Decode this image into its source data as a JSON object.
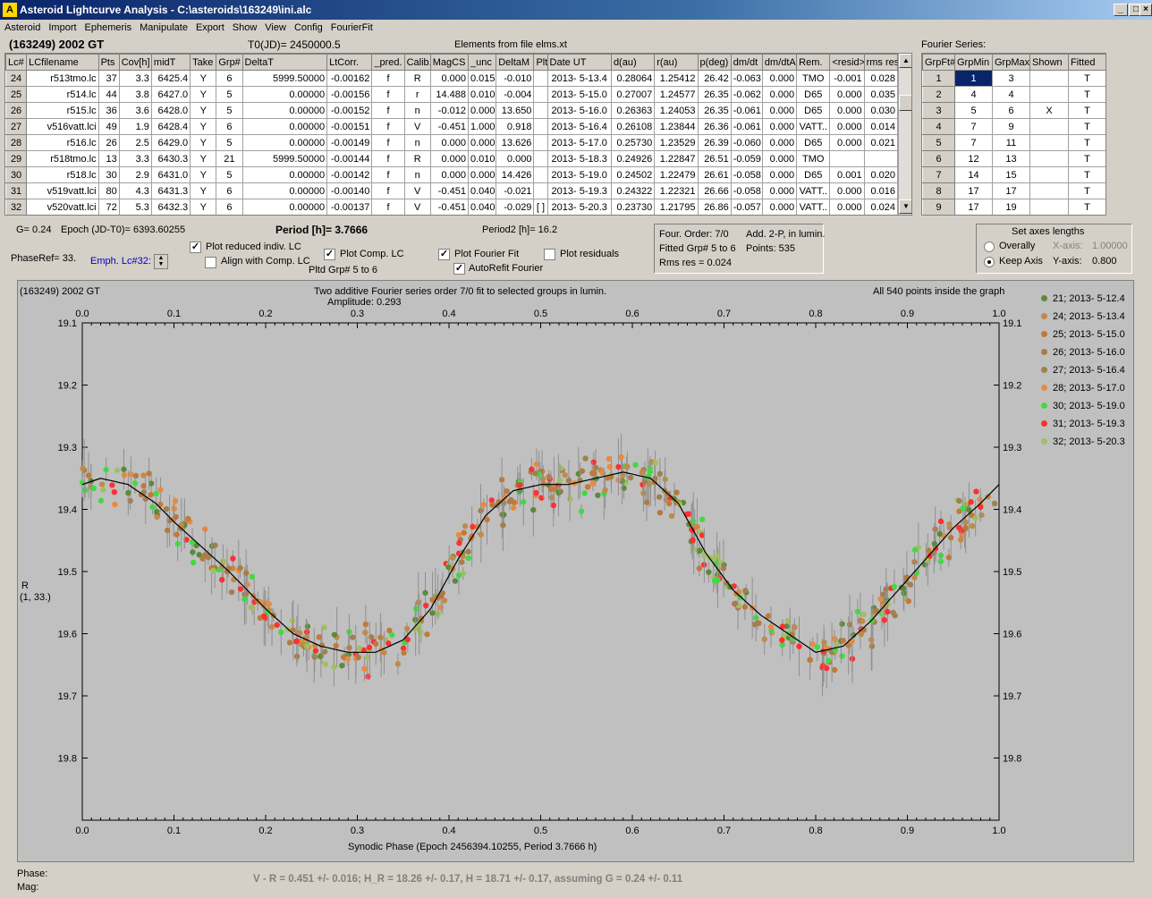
{
  "window": {
    "title": "Asteroid Lightcurve Analysis - C:\\asteroids\\163249\\ini.alc",
    "icon": "app-icon"
  },
  "menu": [
    "Asteroid",
    "Import",
    "Ephemeris",
    "Manipulate",
    "Export",
    "Show",
    "View",
    "Config",
    "FourierFit"
  ],
  "header": {
    "object": "(163249) 2002 GT",
    "t0": "T0(JD)= 2450000.5",
    "elements": "Elements from file elms.xt",
    "fourier_title": "Fourier Series:"
  },
  "lc_table": {
    "columns": [
      "Lc#",
      "LCfilename",
      "Pts",
      "Cov[h]",
      "midT",
      "Take",
      "Grp#",
      "DeltaT",
      "LtCorr.",
      "_pred.",
      "Calib.",
      "MagCS",
      "_unc",
      "DeltaM",
      "Plt",
      "Date UT",
      "d(au)",
      "r(au)",
      "p(deg)",
      "dm/dt",
      "dm/dtA",
      "Rem.",
      "<resid>",
      "rms res"
    ],
    "rows": [
      [
        "24",
        "r513tmo.lc",
        "37",
        "3.3",
        "6425.4",
        "Y",
        "6",
        "5999.50000",
        "-0.00162",
        "f",
        "R",
        "0.000",
        "0.015",
        "-0.010",
        "",
        "2013- 5-13.4",
        "0.28064",
        "1.25412",
        "26.42",
        "-0.063",
        "0.000",
        "TMO",
        "-0.001",
        "0.028"
      ],
      [
        "25",
        "r514.lc",
        "44",
        "3.8",
        "6427.0",
        "Y",
        "5",
        "0.00000",
        "-0.00156",
        "f",
        "r",
        "14.488",
        "0.010",
        "-0.004",
        "",
        "2013- 5-15.0",
        "0.27007",
        "1.24577",
        "26.35",
        "-0.062",
        "0.000",
        "D65",
        "0.000",
        "0.035"
      ],
      [
        "26",
        "r515.lc",
        "36",
        "3.6",
        "6428.0",
        "Y",
        "5",
        "0.00000",
        "-0.00152",
        "f",
        "n",
        "-0.012",
        "0.000",
        "13.650",
        "",
        "2013- 5-16.0",
        "0.26363",
        "1.24053",
        "26.35",
        "-0.061",
        "0.000",
        "D65",
        "0.000",
        "0.030"
      ],
      [
        "27",
        "v516vatt.lci",
        "49",
        "1.9",
        "6428.4",
        "Y",
        "6",
        "0.00000",
        "-0.00151",
        "f",
        "V",
        "-0.451",
        "1.000",
        "0.918",
        "",
        "2013- 5-16.4",
        "0.26108",
        "1.23844",
        "26.36",
        "-0.061",
        "0.000",
        "VATT..",
        "0.000",
        "0.014"
      ],
      [
        "28",
        "r516.lc",
        "26",
        "2.5",
        "6429.0",
        "Y",
        "5",
        "0.00000",
        "-0.00149",
        "f",
        "n",
        "0.000",
        "0.000",
        "13.626",
        "",
        "2013- 5-17.0",
        "0.25730",
        "1.23529",
        "26.39",
        "-0.060",
        "0.000",
        "D65",
        "0.000",
        "0.021"
      ],
      [
        "29",
        "r518tmo.lc",
        "13",
        "3.3",
        "6430.3",
        "Y",
        "21",
        "5999.50000",
        "-0.00144",
        "f",
        "R",
        "0.000",
        "0.010",
        "0.000",
        "",
        "2013- 5-18.3",
        "0.24926",
        "1.22847",
        "26.51",
        "-0.059",
        "0.000",
        "TMO",
        "",
        ""
      ],
      [
        "30",
        "r518.lc",
        "30",
        "2.9",
        "6431.0",
        "Y",
        "5",
        "0.00000",
        "-0.00142",
        "f",
        "n",
        "0.000",
        "0.000",
        "14.426",
        "",
        "2013- 5-19.0",
        "0.24502",
        "1.22479",
        "26.61",
        "-0.058",
        "0.000",
        "D65",
        "0.001",
        "0.020"
      ],
      [
        "31",
        "v519vatt.lci",
        "80",
        "4.3",
        "6431.3",
        "Y",
        "6",
        "0.00000",
        "-0.00140",
        "f",
        "V",
        "-0.451",
        "0.040",
        "-0.021",
        "",
        "2013- 5-19.3",
        "0.24322",
        "1.22321",
        "26.66",
        "-0.058",
        "0.000",
        "VATT..",
        "0.000",
        "0.016"
      ],
      [
        "32",
        "v520vatt.lci",
        "72",
        "5.3",
        "6432.3",
        "Y",
        "6",
        "0.00000",
        "-0.00137",
        "f",
        "V",
        "-0.451",
        "0.040",
        "-0.029",
        "[ ]",
        "2013- 5-20.3",
        "0.23730",
        "1.21795",
        "26.86",
        "-0.057",
        "0.000",
        "VATT..",
        "0.000",
        "0.024"
      ]
    ]
  },
  "fourier_table": {
    "columns": [
      "GrpFt#",
      "GrpMin",
      "GrpMax",
      "Shown",
      "Fitted"
    ],
    "rows": [
      [
        "1",
        "1",
        "3",
        "",
        "T"
      ],
      [
        "2",
        "4",
        "4",
        "",
        "T"
      ],
      [
        "3",
        "5",
        "6",
        "X",
        "T"
      ],
      [
        "4",
        "7",
        "9",
        "",
        "T"
      ],
      [
        "5",
        "7",
        "11",
        "",
        "T"
      ],
      [
        "6",
        "12",
        "13",
        "",
        "T"
      ],
      [
        "7",
        "14",
        "15",
        "",
        "T"
      ],
      [
        "8",
        "17",
        "17",
        "",
        "T"
      ],
      [
        "9",
        "17",
        "19",
        "",
        "T"
      ]
    ]
  },
  "params": {
    "g": "G= 0.24",
    "epoch": "Epoch (JD-T0)= 6393.60255",
    "period": "Period [h]= 3.7666",
    "period2": "Period2 [h]= 16.2",
    "phaseref": "PhaseRef= 33.",
    "emph": "Emph. Lc#32:",
    "pltd": "Pltd Grp#  5  to   6"
  },
  "checkboxes": {
    "reduced": "Plot reduced indiv. LC",
    "align": "Align with Comp. LC",
    "comp": "Plot Comp. LC",
    "fourier": "Plot Fourier Fit",
    "autorefit": "AutoRefit Fourier",
    "residuals": "Plot residuals"
  },
  "fitinfo": {
    "order": "Four. Order:  7/0",
    "add": "Add. 2-P, in lumin.",
    "fitted": "Fitted Grp# 5 to 6",
    "points": "Points: 535",
    "rms": "Rms res      = 0.024"
  },
  "axes": {
    "title": "Set axes lengths",
    "overall": "Overally",
    "keep": "Keep Axis",
    "xaxis": "X-axis:",
    "xval": "1.00000",
    "yaxis": "Y-axis:",
    "yval": "0.800"
  },
  "plot": {
    "object": "(163249) 2002 GT",
    "title": "Two additive Fourier series order 7/0 fit to selected groups in lumin.",
    "amplitude": "Amplitude: 0.293",
    "inside": "All 540 points inside the graph",
    "ylabel": "R",
    "ylabel2": "(1, 33.)",
    "xlabel": "Synodic Phase (Epoch 2456394.10255, Period 3.7666 h)"
  },
  "status": {
    "phase": "Phase:",
    "mag": "Mag:",
    "result": "V - R = 0.451 +/- 0.016; H_R = 18.26 +/- 0.17, H = 18.71 +/- 0.17, assuming G = 0.24 +/- 0.11"
  },
  "chart_data": {
    "type": "scatter",
    "xlabel": "Synodic Phase (Epoch 2456394.10255, Period 3.7666 h)",
    "ylabel": "R",
    "xlim": [
      0.0,
      1.0
    ],
    "ylim": [
      19.1,
      19.9
    ],
    "y_inverted": true,
    "xticks": [
      "0.0",
      "0.1",
      "0.2",
      "0.3",
      "0.4",
      "0.5",
      "0.6",
      "0.7",
      "0.8",
      "0.9",
      "1.0"
    ],
    "yticks": [
      "19.1",
      "19.2",
      "19.3",
      "19.4",
      "19.5",
      "19.6",
      "19.7",
      "19.8"
    ],
    "series": [
      {
        "name": "21; 2013- 5-12.4",
        "color": "#5a8a3c"
      },
      {
        "name": "24; 2013- 5-13.4",
        "color": "#c08a4a"
      },
      {
        "name": "25; 2013- 5-15.0",
        "color": "#c07a3a"
      },
      {
        "name": "26; 2013- 5-16.0",
        "color": "#b07a40"
      },
      {
        "name": "27; 2013- 5-16.4",
        "color": "#a08050"
      },
      {
        "name": "28; 2013- 5-17.0",
        "color": "#e88a40"
      },
      {
        "name": "30; 2013- 5-19.0",
        "color": "#44d844"
      },
      {
        "name": "31; 2013- 5-19.3",
        "color": "#ff3030"
      },
      {
        "name": "32; 2013- 5-20.3",
        "color": "#a0c060"
      }
    ],
    "fit_curve": {
      "x": [
        0.0,
        0.02,
        0.05,
        0.08,
        0.1,
        0.13,
        0.16,
        0.2,
        0.23,
        0.26,
        0.29,
        0.32,
        0.35,
        0.38,
        0.41,
        0.44,
        0.47,
        0.5,
        0.53,
        0.56,
        0.59,
        0.62,
        0.65,
        0.68,
        0.71,
        0.74,
        0.77,
        0.8,
        0.83,
        0.86,
        0.89,
        0.92,
        0.95,
        0.98,
        1.0
      ],
      "y": [
        19.36,
        19.35,
        19.36,
        19.39,
        19.42,
        19.46,
        19.5,
        19.56,
        19.6,
        19.62,
        19.63,
        19.63,
        19.61,
        19.56,
        19.48,
        19.41,
        19.37,
        19.36,
        19.36,
        19.35,
        19.34,
        19.35,
        19.39,
        19.47,
        19.53,
        19.57,
        19.6,
        19.63,
        19.62,
        19.58,
        19.53,
        19.48,
        19.43,
        19.39,
        19.36
      ]
    }
  }
}
